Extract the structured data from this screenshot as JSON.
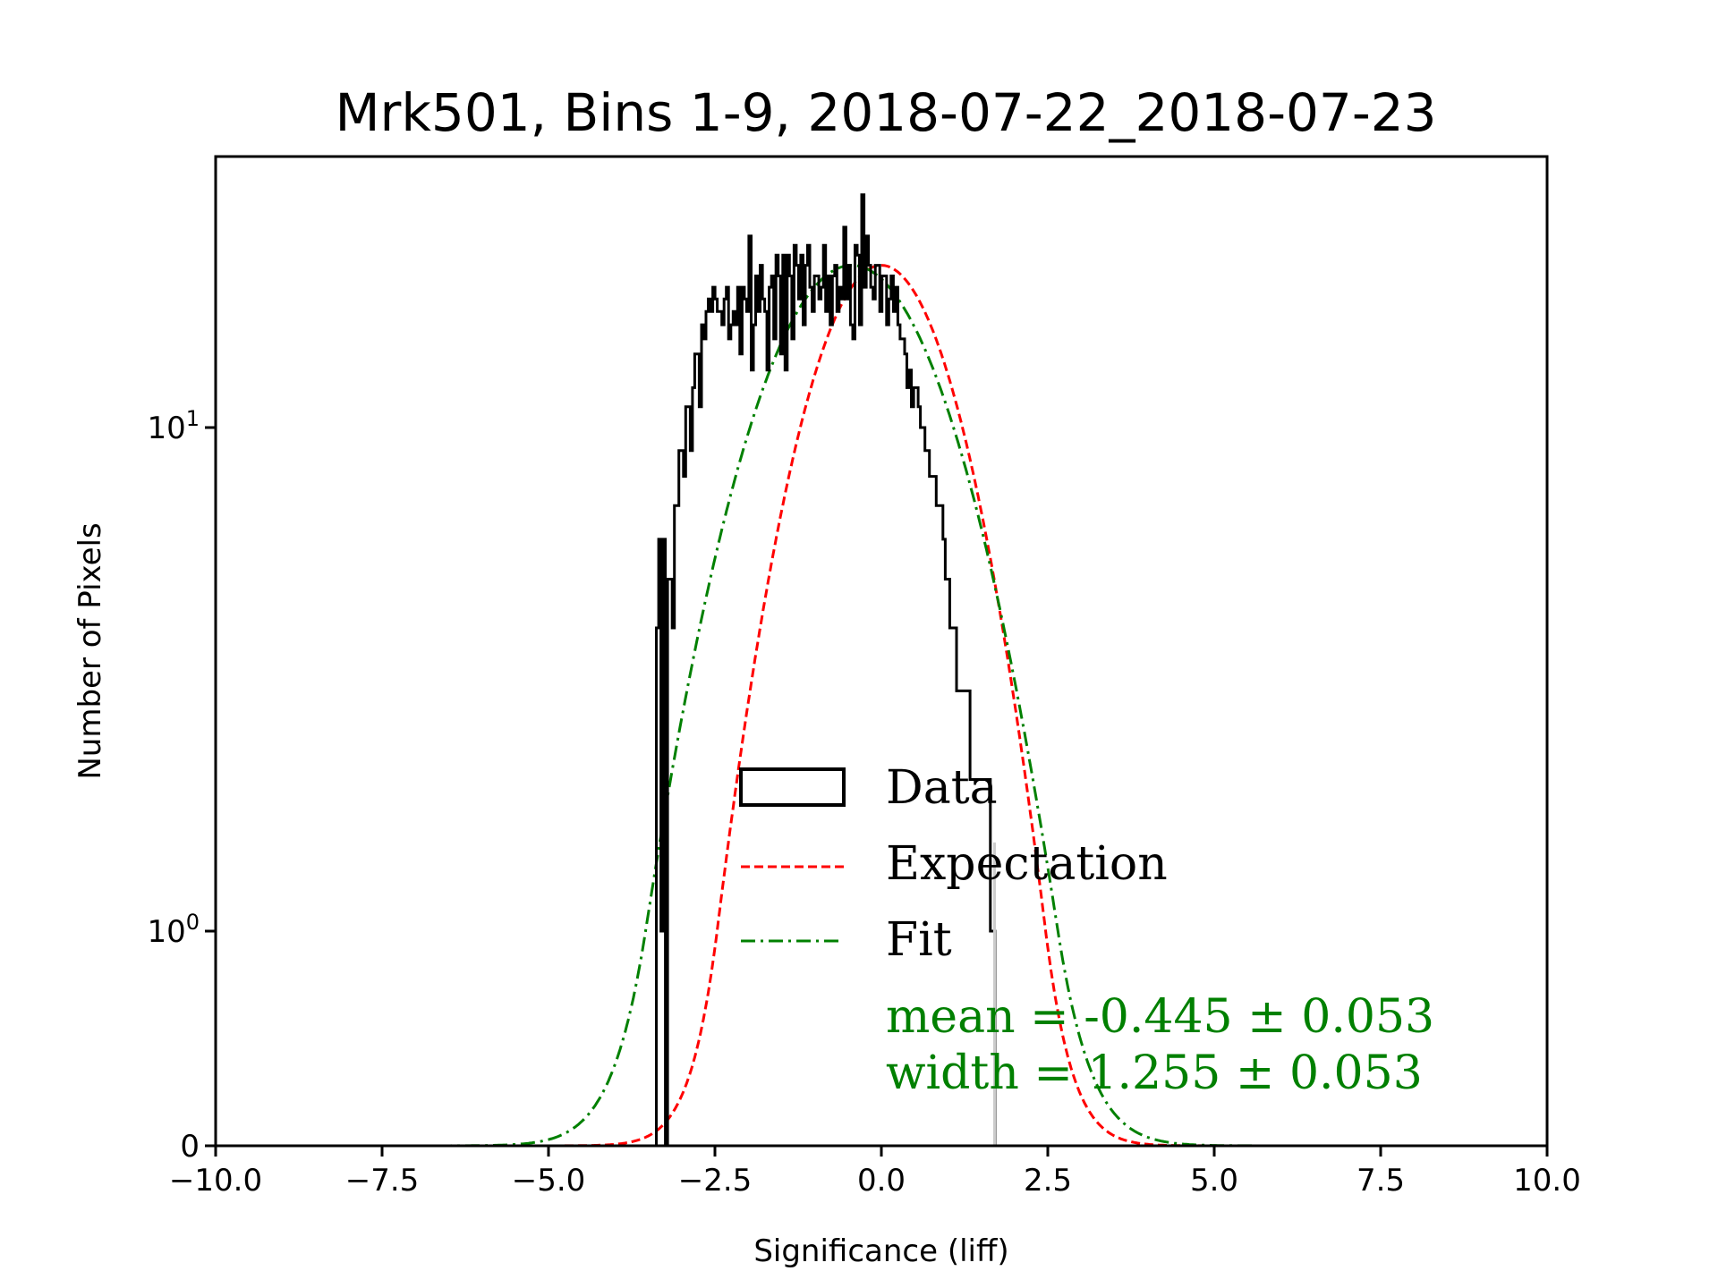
{
  "chart_data": {
    "type": "histogram",
    "title": "Mrk501, Bins 1-9, 2018-07-22_2018-07-23",
    "xlabel": "Significance (liff)",
    "ylabel": "Number of Pixels",
    "xlim": [
      -10.0,
      10.0
    ],
    "yscale": "symlog",
    "ylim": [
      0,
      30
    ],
    "x_ticks": [
      -10.0,
      -7.5,
      -5.0,
      -2.5,
      0.0,
      2.5,
      5.0,
      7.5,
      10.0
    ],
    "x_tick_labels": [
      "−10.0",
      "−7.5",
      "−5.0",
      "−2.5",
      "0.0",
      "2.5",
      "5.0",
      "7.5",
      "10.0"
    ],
    "y_ticks": [
      0,
      1,
      10
    ],
    "y_tick_labels": [
      {
        "base": "0",
        "exp": ""
      },
      {
        "base": "10",
        "exp": "0"
      },
      {
        "base": "10",
        "exp": "1"
      }
    ],
    "legend": {
      "placement": "center-right",
      "entries": [
        {
          "label": "Data",
          "style": "step",
          "color": "#000000"
        },
        {
          "label": "Expectation",
          "style": "dashed",
          "color": "#ff0000"
        },
        {
          "label": "Fit",
          "style": "dashdot",
          "color": "#008000"
        }
      ]
    },
    "annotations": [
      {
        "text": "mean = -0.445 ± 0.053",
        "color": "#008000"
      },
      {
        "text": "width = 1.255 ± 0.053",
        "color": "#008000"
      }
    ],
    "vline": {
      "x": 1.7,
      "color": "#cccccc"
    },
    "data_hist": {
      "bin_start": -3.38,
      "bin_width": 0.0339,
      "counts": [
        4,
        6,
        1,
        6,
        0,
        5,
        5,
        4,
        7,
        7,
        9,
        9,
        8,
        11,
        11,
        9,
        12,
        14,
        14,
        11,
        16,
        15,
        17,
        18,
        17,
        19,
        18,
        17,
        17,
        16,
        18,
        19,
        15,
        16,
        17,
        16,
        19,
        14,
        19,
        18,
        17,
        24,
        13,
        16,
        20,
        17,
        21,
        18,
        17,
        13,
        19,
        20,
        15,
        22,
        20,
        14,
        22,
        13,
        22,
        20,
        15,
        23,
        21,
        18,
        22,
        16,
        21,
        23,
        19,
        17,
        20,
        20,
        18,
        19,
        23,
        17,
        20,
        16,
        20,
        21,
        17,
        19,
        18,
        25,
        18,
        21,
        16,
        15,
        23,
        22,
        16,
        29,
        19,
        24,
        21,
        19,
        18,
        21,
        21,
        17,
        20,
        20,
        16,
        18,
        20,
        17,
        19,
        16,
        15,
        15,
        14,
        12,
        13,
        11,
        12,
        12,
        11,
        10,
        10,
        9,
        9,
        8,
        8,
        8,
        7,
        7,
        7,
        6,
        5,
        5,
        4,
        4,
        4,
        3,
        3,
        3,
        3,
        3,
        3,
        2,
        2,
        2,
        2,
        2,
        2,
        2,
        2,
        2,
        1,
        1
      ]
    },
    "expectation": {
      "type": "gaussian",
      "mean": 0.0,
      "sigma": 1.0,
      "amplitude": 21.0,
      "color": "#ff0000"
    },
    "fit": {
      "type": "gaussian",
      "mean": -0.445,
      "sigma": 1.255,
      "amplitude": 21.0,
      "color": "#008000"
    }
  }
}
